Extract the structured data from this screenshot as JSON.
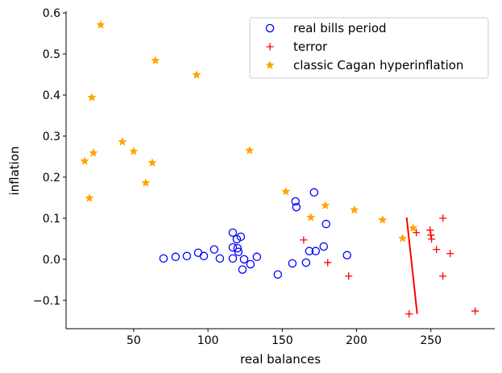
{
  "chart_data": {
    "type": "scatter",
    "xlabel": "real balances",
    "ylabel": "inflation",
    "xlim": [
      4.5,
      293
    ],
    "ylim": [
      -0.169,
      0.604
    ],
    "xticks": [
      50,
      100,
      150,
      200,
      250
    ],
    "yticks": [
      -0.1,
      0.0,
      0.1,
      0.2,
      0.3,
      0.4,
      0.5,
      0.6
    ],
    "ytick_labels": [
      "−0.1",
      "0.0",
      "0.1",
      "0.2",
      "0.3",
      "0.4",
      "0.5",
      "0.6"
    ],
    "grid": false,
    "legend_position": "top-right",
    "series": [
      {
        "name": "real bills period",
        "marker": "open-circle",
        "color": "#0000ff",
        "points": [
          [
            70.1,
            0.002
          ],
          [
            78.2,
            0.006
          ],
          [
            85.8,
            0.008
          ],
          [
            93.4,
            0.016
          ],
          [
            97.2,
            0.008
          ],
          [
            104.2,
            0.024
          ],
          [
            108.0,
            0.002
          ],
          [
            116.7,
            0.065
          ],
          [
            119.4,
            0.049
          ],
          [
            122.1,
            0.055
          ],
          [
            116.7,
            0.029
          ],
          [
            119.9,
            0.027
          ],
          [
            120.5,
            0.018
          ],
          [
            116.7,
            0.002
          ],
          [
            124.3,
            0.0
          ],
          [
            128.6,
            -0.012
          ],
          [
            123.2,
            -0.025
          ],
          [
            132.9,
            0.006
          ],
          [
            147.0,
            -0.037
          ],
          [
            156.8,
            -0.01
          ],
          [
            158.9,
            0.141
          ],
          [
            159.5,
            0.127
          ],
          [
            166.0,
            -0.008
          ],
          [
            168.2,
            0.02
          ],
          [
            171.4,
            0.163
          ],
          [
            172.5,
            0.02
          ],
          [
            177.9,
            0.031
          ],
          [
            179.5,
            0.086
          ],
          [
            193.6,
            0.01
          ]
        ]
      },
      {
        "name": "terror",
        "marker": "plus",
        "color": "#ff0000",
        "points": [
          [
            164.4,
            0.047
          ],
          [
            180.6,
            -0.008
          ],
          [
            194.7,
            -0.041
          ],
          [
            235.4,
            -0.133
          ],
          [
            240.2,
            0.065
          ],
          [
            249.5,
            0.071
          ],
          [
            250.0,
            0.059
          ],
          [
            250.5,
            0.049
          ],
          [
            253.8,
            0.024
          ],
          [
            258.1,
            0.1
          ],
          [
            263.0,
            0.014
          ],
          [
            258.1,
            -0.041
          ],
          [
            279.8,
            -0.126
          ]
        ]
      },
      {
        "name": "classic Cagan hyperinflation",
        "marker": "star",
        "color": "#ffa500",
        "points": [
          [
            27.8,
            0.571
          ],
          [
            64.6,
            0.484
          ],
          [
            92.3,
            0.449
          ],
          [
            21.8,
            0.394
          ],
          [
            42.4,
            0.286
          ],
          [
            50.0,
            0.263
          ],
          [
            22.9,
            0.259
          ],
          [
            17.0,
            0.239
          ],
          [
            62.5,
            0.235
          ],
          [
            20.2,
            0.149
          ],
          [
            58.1,
            0.186
          ],
          [
            128.0,
            0.265
          ],
          [
            152.4,
            0.165
          ],
          [
            179.0,
            0.131
          ],
          [
            169.2,
            0.102
          ],
          [
            198.5,
            0.12
          ],
          [
            217.5,
            0.096
          ],
          [
            231.0,
            0.051
          ],
          [
            238.1,
            0.076
          ]
        ]
      },
      {
        "marker": "line",
        "color": "#ff0000",
        "points": [
          [
            233.7,
            0.102
          ],
          [
            240.8,
            -0.133
          ]
        ]
      }
    ]
  }
}
